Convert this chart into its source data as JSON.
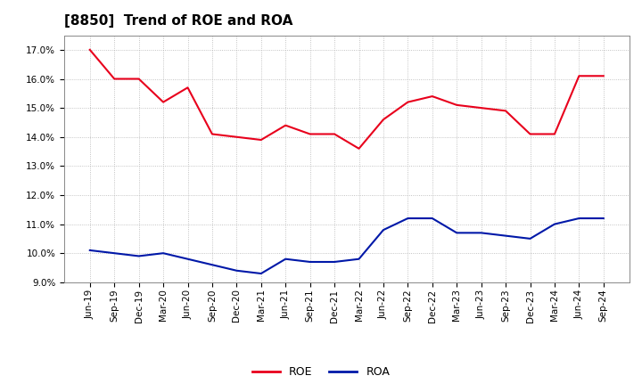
{
  "title": "[8850]  Trend of ROE and ROA",
  "x_labels": [
    "Jun-19",
    "Sep-19",
    "Dec-19",
    "Mar-20",
    "Jun-20",
    "Sep-20",
    "Dec-20",
    "Mar-21",
    "Jun-21",
    "Sep-21",
    "Dec-21",
    "Mar-22",
    "Jun-22",
    "Sep-22",
    "Dec-22",
    "Mar-23",
    "Jun-23",
    "Sep-23",
    "Dec-23",
    "Mar-24",
    "Jun-24",
    "Sep-24"
  ],
  "roe": [
    17.0,
    16.0,
    16.0,
    15.2,
    15.7,
    14.1,
    14.0,
    13.9,
    14.4,
    14.1,
    14.1,
    13.6,
    14.6,
    15.2,
    15.4,
    15.1,
    15.0,
    14.9,
    14.1,
    14.1,
    16.1,
    16.1
  ],
  "roa": [
    10.1,
    10.0,
    9.9,
    10.0,
    9.8,
    9.6,
    9.4,
    9.3,
    9.8,
    9.7,
    9.7,
    9.8,
    10.8,
    11.2,
    11.2,
    10.7,
    10.7,
    10.6,
    10.5,
    11.0,
    11.2,
    11.2
  ],
  "roe_color": "#e8001c",
  "roa_color": "#0018a8",
  "background_color": "#ffffff",
  "grid_color": "#aaaaaa",
  "ylim": [
    9.0,
    17.5
  ],
  "yticks": [
    9.0,
    10.0,
    11.0,
    12.0,
    13.0,
    14.0,
    15.0,
    16.0,
    17.0
  ],
  "line_width": 1.5,
  "title_fontsize": 11,
  "tick_fontsize": 7.5,
  "legend_fontsize": 9
}
